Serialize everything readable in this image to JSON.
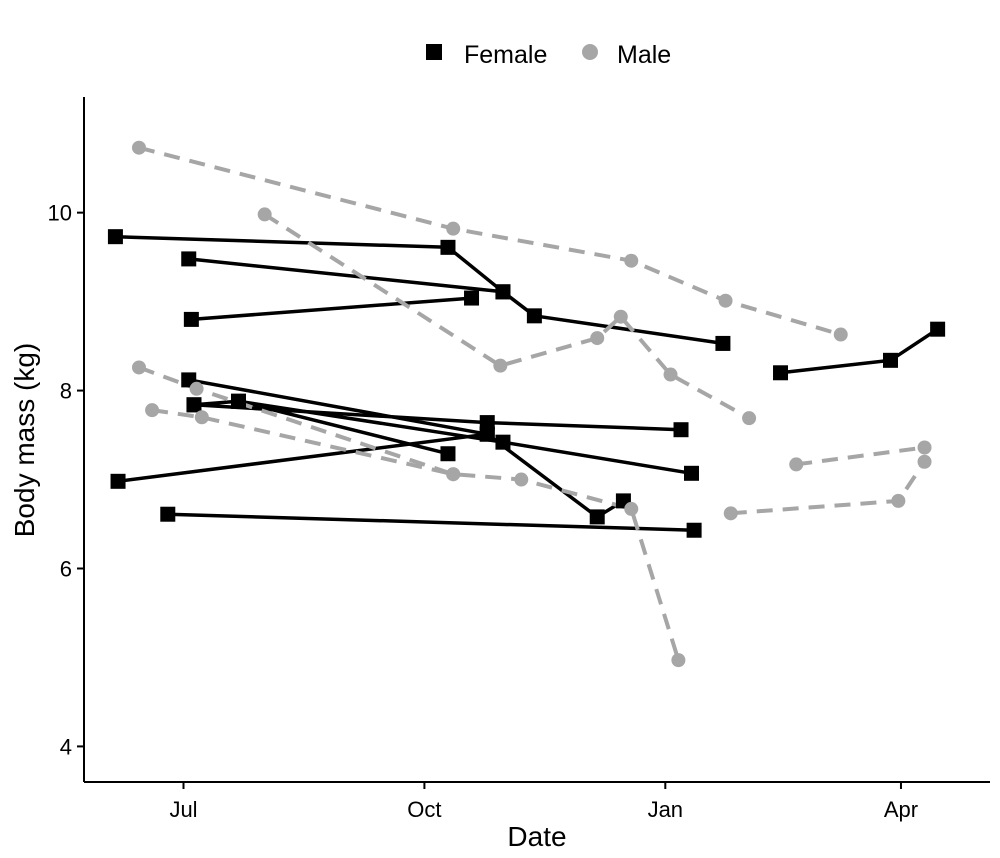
{
  "chart_data": {
    "type": "line",
    "xlabel": "Date",
    "ylabel": "Body mass (kg)",
    "x_type": "date",
    "xlim": [
      "2012-05-24",
      "2013-05-05"
    ],
    "ylim": [
      3.6,
      11.3
    ],
    "x_ticks": [
      {
        "date": "2012-07-01",
        "label": "Jul"
      },
      {
        "date": "2012-10-01",
        "label": "Oct"
      },
      {
        "date": "2013-01-01",
        "label": "Jan"
      },
      {
        "date": "2013-04-01",
        "label": "Apr"
      }
    ],
    "y_ticks": [
      4,
      6,
      8,
      10
    ],
    "grid": false,
    "legend": {
      "position": "top-center"
    },
    "series": [
      {
        "name": "Female",
        "color": "#000000",
        "marker": "square",
        "line": "solid",
        "individuals": [
          [
            [
              "2012-06-05",
              9.73
            ],
            [
              "2012-10-10",
              9.61
            ],
            [
              "2012-10-31",
              9.11
            ],
            [
              "2012-11-12",
              8.84
            ],
            [
              "2013-01-23",
              8.53
            ]
          ],
          [
            [
              "2012-07-03",
              9.48
            ],
            [
              "2012-10-31",
              9.11
            ]
          ],
          [
            [
              "2012-07-04",
              8.8
            ],
            [
              "2012-10-19",
              9.04
            ]
          ],
          [
            [
              "2012-07-03",
              8.12
            ],
            [
              "2012-10-25",
              7.51
            ],
            [
              "2012-12-06",
              6.58
            ],
            [
              "2012-12-16",
              6.76
            ]
          ],
          [
            [
              "2012-07-05",
              7.84
            ],
            [
              "2012-07-22",
              7.88
            ],
            [
              "2012-10-10",
              7.29
            ]
          ],
          [
            [
              "2012-07-05",
              7.84
            ],
            [
              "2012-10-25",
              7.64
            ],
            [
              "2013-01-07",
              7.56
            ]
          ],
          [
            [
              "2012-07-22",
              7.88
            ],
            [
              "2012-10-31",
              7.42
            ],
            [
              "2013-01-11",
              7.07
            ]
          ],
          [
            [
              "2012-06-06",
              6.98
            ],
            [
              "2012-10-25",
              7.51
            ]
          ],
          [
            [
              "2012-06-25",
              6.61
            ],
            [
              "2013-01-12",
              6.43
            ]
          ],
          [
            [
              "2013-02-14",
              8.2
            ],
            [
              "2013-03-28",
              8.34
            ],
            [
              "2013-04-15",
              8.69
            ]
          ]
        ]
      },
      {
        "name": "Male",
        "color": "#a6a6a6",
        "marker": "circle",
        "line": "dashed",
        "individuals": [
          [
            [
              "2012-06-14",
              10.73
            ],
            [
              "2012-10-12",
              9.82
            ],
            [
              "2012-12-19",
              9.46
            ],
            [
              "2013-01-24",
              9.01
            ],
            [
              "2013-03-09",
              8.63
            ]
          ],
          [
            [
              "2012-08-01",
              9.98
            ],
            [
              "2012-10-30",
              8.28
            ],
            [
              "2012-12-06",
              8.59
            ],
            [
              "2012-12-15",
              8.83
            ],
            [
              "2013-01-03",
              8.18
            ],
            [
              "2013-02-02",
              7.69
            ]
          ],
          [
            [
              "2012-06-14",
              8.26
            ],
            [
              "2012-07-06",
              8.02
            ],
            [
              "2012-10-12",
              7.06
            ],
            [
              "2012-11-07",
              7.0
            ],
            [
              "2012-12-19",
              6.67
            ],
            [
              "2013-01-06",
              4.97
            ]
          ],
          [
            [
              "2012-06-19",
              7.78
            ],
            [
              "2012-07-08",
              7.7
            ],
            [
              "2012-10-12",
              7.06
            ]
          ],
          [
            [
              "2013-01-26",
              6.62
            ],
            [
              "2013-03-31",
              6.76
            ],
            [
              "2013-04-10",
              7.2
            ]
          ],
          [
            [
              "2013-02-20",
              7.17
            ],
            [
              "2013-04-10",
              7.36
            ]
          ]
        ]
      }
    ]
  }
}
